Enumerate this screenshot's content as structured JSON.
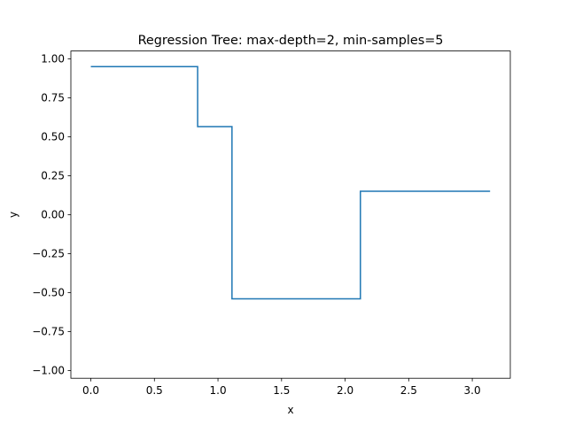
{
  "chart_data": {
    "type": "line",
    "title": "Regression Tree: max-depth=2, min-samples=5",
    "xlabel": "x",
    "ylabel": "y",
    "xlim": [
      -0.157,
      3.299
    ],
    "ylim": [
      -1.05,
      1.05
    ],
    "x_ticks": [
      0.0,
      0.5,
      1.0,
      1.5,
      2.0,
      2.5,
      3.0
    ],
    "x_tick_labels": [
      "0.0",
      "0.5",
      "1.0",
      "1.5",
      "2.0",
      "2.5",
      "3.0"
    ],
    "y_ticks": [
      1.0,
      0.75,
      0.5,
      0.25,
      0.0,
      -0.25,
      -0.5,
      -0.75,
      -1.0
    ],
    "y_tick_labels": [
      "1.00",
      "0.75",
      "0.50",
      "0.25",
      "0.00",
      "−0.25",
      "−0.50",
      "−0.75",
      "−1.00"
    ],
    "grid": false,
    "legend": "none",
    "series": [
      {
        "color": "#1f77b4",
        "points": [
          {
            "x": 0.0,
            "y": 0.95
          },
          {
            "x": 0.84,
            "y": 0.95
          },
          {
            "x": 0.84,
            "y": 0.565
          },
          {
            "x": 1.11,
            "y": 0.565
          },
          {
            "x": 1.11,
            "y": -0.54
          },
          {
            "x": 2.12,
            "y": -0.54
          },
          {
            "x": 2.12,
            "y": 0.15
          },
          {
            "x": 3.14,
            "y": 0.15
          }
        ]
      }
    ]
  }
}
